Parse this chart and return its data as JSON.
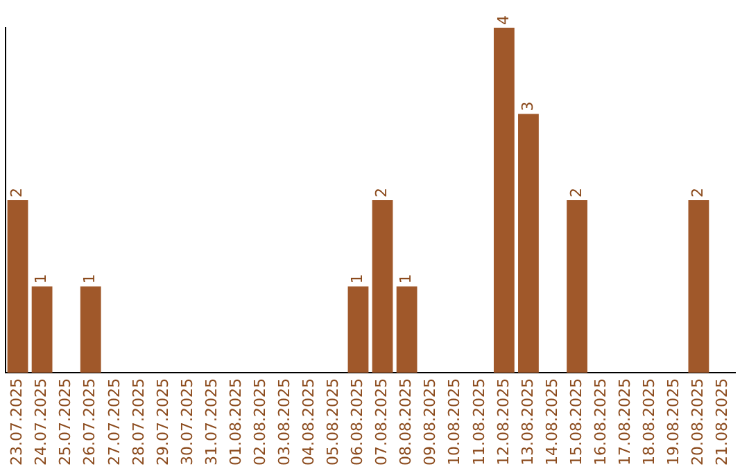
{
  "chart_data": {
    "type": "bar",
    "categories": [
      "23.07.2025",
      "24.07.2025",
      "25.07.2025",
      "26.07.2025",
      "27.07.2025",
      "28.07.2025",
      "29.07.2025",
      "30.07.2025",
      "31.07.2025",
      "01.08.2025",
      "02.08.2025",
      "03.08.2025",
      "04.08.2025",
      "05.08.2025",
      "06.08.2025",
      "07.08.2025",
      "08.08.2025",
      "09.08.2025",
      "10.08.2025",
      "11.08.2025",
      "12.08.2025",
      "13.08.2025",
      "14.08.2025",
      "15.08.2025",
      "16.08.2025",
      "17.08.2025",
      "18.08.2025",
      "19.08.2025",
      "20.08.2025",
      "21.08.2025"
    ],
    "values": [
      2,
      1,
      0,
      1,
      0,
      0,
      0,
      0,
      0,
      0,
      0,
      0,
      0,
      0,
      1,
      2,
      1,
      0,
      0,
      0,
      4,
      3,
      0,
      2,
      0,
      0,
      0,
      0,
      2,
      0
    ],
    "value_labels": [
      "2",
      "1",
      null,
      "1",
      null,
      null,
      null,
      null,
      null,
      null,
      null,
      null,
      null,
      null,
      "1",
      "2",
      "1",
      null,
      null,
      null,
      "4",
      "3",
      null,
      "2",
      null,
      null,
      null,
      null,
      "2",
      null
    ],
    "color": "#a0582a",
    "tick_labels": "x",
    "grid": false,
    "legend": false
  }
}
